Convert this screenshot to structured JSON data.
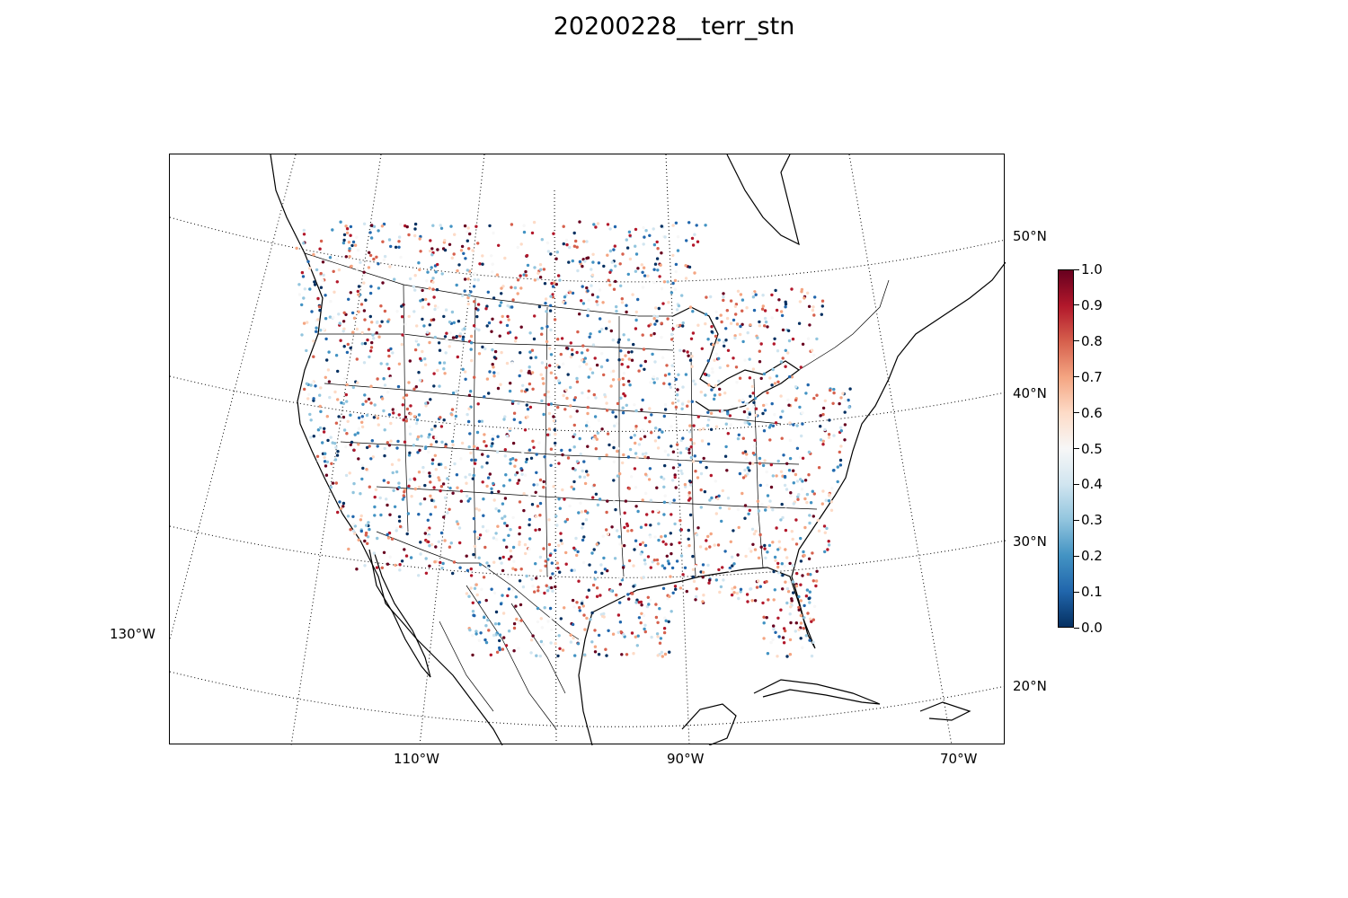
{
  "title": "20200228__terr_stn",
  "map": {
    "projection": "lambert-conformal",
    "coastlines": true,
    "country_borders": true,
    "state_borders": true,
    "graticule": "dotted"
  },
  "axes": {
    "longitude_labels": [
      "130°W",
      "110°W",
      "90°W",
      "70°W"
    ],
    "latitude_labels": [
      "50°N",
      "40°N",
      "30°N",
      "20°N"
    ]
  },
  "colorbar": {
    "colormap": "RdBu_r",
    "range": [
      0.0,
      1.0
    ],
    "ticks": [
      "0.0",
      "0.1",
      "0.2",
      "0.3",
      "0.4",
      "0.5",
      "0.6",
      "0.7",
      "0.8",
      "0.9",
      "1.0"
    ],
    "color_low": "#053061",
    "color_mid": "#f7f7f7",
    "color_high": "#67001f"
  }
}
